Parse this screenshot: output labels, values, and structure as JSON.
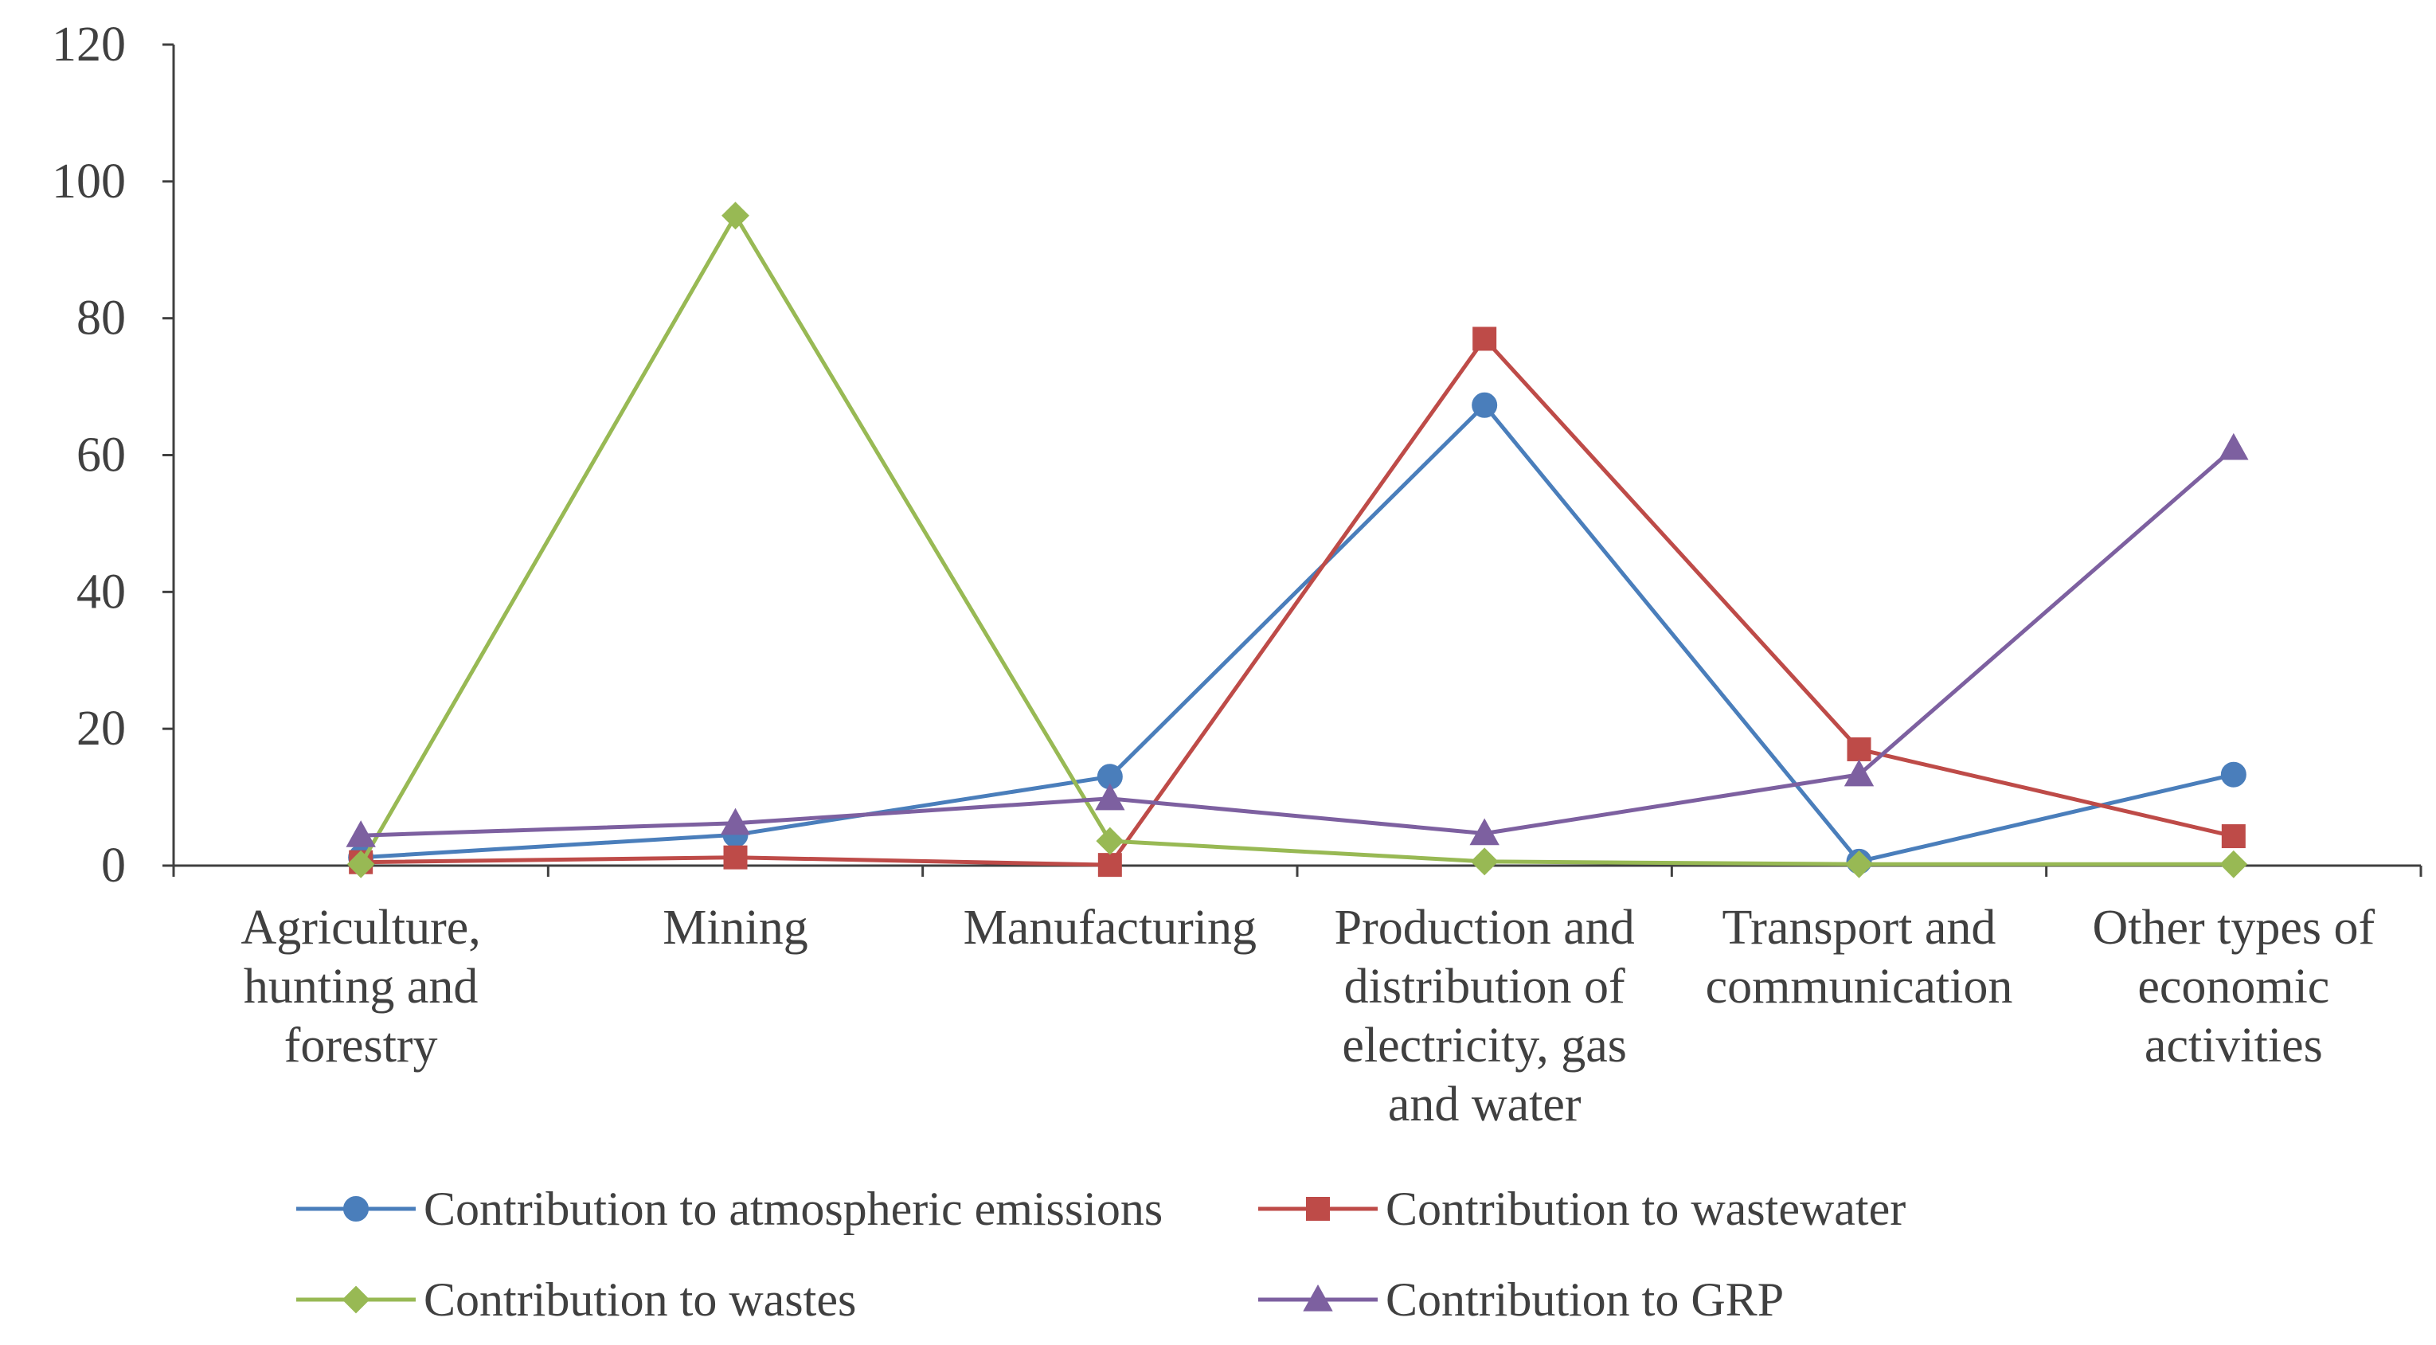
{
  "chart_data": {
    "type": "line",
    "title": "",
    "xlabel": "",
    "ylabel": "",
    "ylim": [
      0,
      120
    ],
    "y_ticks": [
      0,
      20,
      40,
      60,
      80,
      100,
      120
    ],
    "y_tick_labels": [
      "0",
      "20",
      "40",
      "60",
      "80",
      "100",
      "120"
    ],
    "grid": false,
    "legend_position": "bottom",
    "categories": [
      [
        "Agriculture,",
        "hunting and",
        "forestry"
      ],
      [
        "Mining"
      ],
      [
        "Manufacturing"
      ],
      [
        "Production and",
        "distribution of",
        "electricity, gas",
        "and water"
      ],
      [
        "Transport and",
        "communication"
      ],
      [
        "Other types of",
        "economic",
        "activities"
      ]
    ],
    "series": [
      {
        "name": "Contribution to atmospheric emissions",
        "color": "#4A7EBB",
        "marker": "circle",
        "values": [
          1.2,
          4.5,
          13.0,
          67.3,
          0.6,
          13.3
        ]
      },
      {
        "name": "Contribution to wastewater",
        "color": "#BE4B48",
        "marker": "square",
        "values": [
          0.5,
          1.2,
          0.1,
          77.0,
          17.0,
          4.3
        ]
      },
      {
        "name": "Contribution to wastes",
        "color": "#98B954",
        "marker": "diamond",
        "values": [
          0.2,
          95.0,
          3.6,
          0.6,
          0.2,
          0.2
        ]
      },
      {
        "name": "Contribution to GRP",
        "color": "#7D60A0",
        "marker": "triangle",
        "values": [
          4.4,
          6.2,
          9.8,
          4.7,
          13.3,
          61.0
        ]
      }
    ]
  }
}
